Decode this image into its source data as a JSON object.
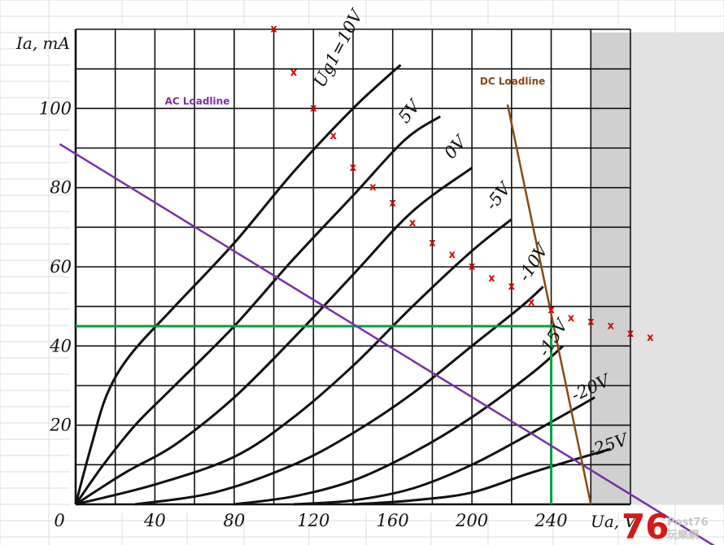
{
  "chart_data": {
    "type": "line",
    "xlabel": "Ua, V",
    "ylabel": "Ia, mA",
    "xlim": [
      0,
      280
    ],
    "ylim": [
      0,
      120
    ],
    "x_ticks": [
      {
        "value": 0,
        "label": "0"
      },
      {
        "value": 40,
        "label": "40"
      },
      {
        "value": 80,
        "label": "80"
      },
      {
        "value": 120,
        "label": "120"
      },
      {
        "value": 160,
        "label": "160"
      },
      {
        "value": 200,
        "label": "200"
      },
      {
        "value": 240,
        "label": "240"
      }
    ],
    "y_ticks": [
      {
        "value": 20,
        "label": "20"
      },
      {
        "value": 40,
        "label": "40"
      },
      {
        "value": 60,
        "label": "60"
      },
      {
        "value": 80,
        "label": "80"
      },
      {
        "value": 100,
        "label": "100"
      }
    ],
    "grid": true,
    "shaded_region_x": [
      260,
      280
    ],
    "series": [
      {
        "label": "Ug1=10V",
        "points": [
          [
            0,
            0
          ],
          [
            8,
            15
          ],
          [
            16,
            28
          ],
          [
            28,
            38
          ],
          [
            50,
            50
          ],
          [
            80,
            66
          ],
          [
            110,
            84
          ],
          [
            140,
            100
          ],
          [
            164,
            111
          ]
        ]
      },
      {
        "label": "5V",
        "points": [
          [
            0,
            0
          ],
          [
            14,
            10
          ],
          [
            30,
            20
          ],
          [
            50,
            30
          ],
          [
            80,
            45
          ],
          [
            110,
            62
          ],
          [
            140,
            78
          ],
          [
            166,
            92
          ],
          [
            184,
            98
          ]
        ]
      },
      {
        "label": "0V",
        "points": [
          [
            0,
            0
          ],
          [
            25,
            8
          ],
          [
            50,
            15
          ],
          [
            80,
            27
          ],
          [
            110,
            42
          ],
          [
            140,
            58
          ],
          [
            170,
            74
          ],
          [
            200,
            85
          ]
        ]
      },
      {
        "label": "-5V",
        "points": [
          [
            0,
            0
          ],
          [
            40,
            5
          ],
          [
            80,
            12
          ],
          [
            110,
            22
          ],
          [
            140,
            35
          ],
          [
            170,
            50
          ],
          [
            200,
            64
          ],
          [
            220,
            72
          ]
        ]
      },
      {
        "label": "-10V",
        "points": [
          [
            30,
            0
          ],
          [
            70,
            3
          ],
          [
            110,
            10
          ],
          [
            140,
            18
          ],
          [
            170,
            28
          ],
          [
            200,
            40
          ],
          [
            225,
            50
          ],
          [
            236,
            55
          ]
        ]
      },
      {
        "label": "-15V",
        "points": [
          [
            80,
            0
          ],
          [
            110,
            2
          ],
          [
            140,
            6
          ],
          [
            170,
            13
          ],
          [
            200,
            22
          ],
          [
            230,
            33
          ],
          [
            246,
            40
          ]
        ]
      },
      {
        "label": "-20V",
        "points": [
          [
            110,
            0
          ],
          [
            140,
            1
          ],
          [
            170,
            4
          ],
          [
            200,
            10
          ],
          [
            230,
            18
          ],
          [
            262,
            27
          ]
        ]
      },
      {
        "label": "-25V",
        "points": [
          [
            140,
            0
          ],
          [
            170,
            1
          ],
          [
            200,
            3
          ],
          [
            230,
            8
          ],
          [
            270,
            14
          ]
        ]
      }
    ],
    "loadlines": [
      {
        "name": "AC Loadline",
        "color": "#7b2fa8",
        "points": [
          [
            -8,
            91
          ],
          [
            324,
            -11
          ]
        ]
      },
      {
        "name": "DC Loadline",
        "color": "#8a4a12",
        "points": [
          [
            218,
            101
          ],
          [
            260,
            0
          ]
        ]
      }
    ],
    "operating_point": {
      "x": 240,
      "y": 45,
      "color": "#00a040"
    },
    "x_markers": [
      [
        100,
        120
      ],
      [
        110,
        109
      ],
      [
        120,
        100
      ],
      [
        130,
        93
      ],
      [
        140,
        85
      ],
      [
        150,
        80
      ],
      [
        160,
        76
      ],
      [
        170,
        71
      ],
      [
        180,
        66
      ],
      [
        190,
        63
      ],
      [
        200,
        60
      ],
      [
        210,
        57
      ],
      [
        220,
        55
      ],
      [
        230,
        51
      ],
      [
        240,
        49
      ],
      [
        250,
        47
      ],
      [
        260,
        46
      ],
      [
        270,
        45
      ],
      [
        280,
        43
      ],
      [
        290,
        42
      ]
    ],
    "marker_symbol": "x",
    "marker_color": "#e00000"
  },
  "watermark": {
    "number": "76",
    "brand": "Post76",
    "cjk": "玩樂網"
  }
}
